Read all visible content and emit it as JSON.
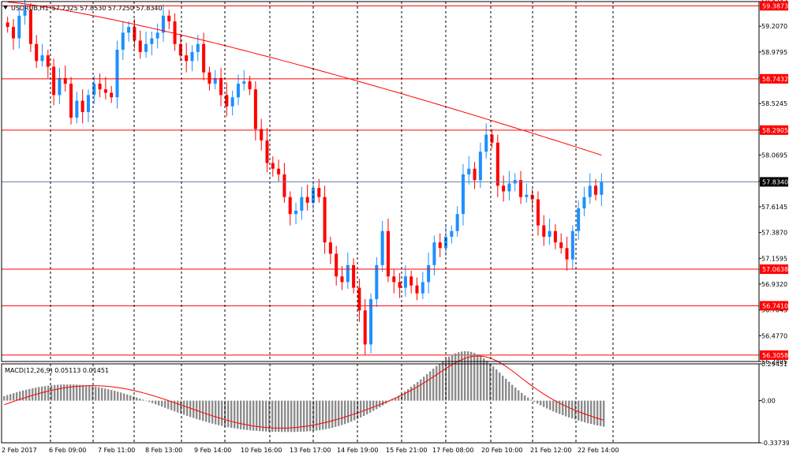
{
  "header": {
    "symbol_tf": "USDRUB,H1",
    "ohlc": "57.7325 57.8530 57.7250 57.8340",
    "macd_label": "MACD(12,26,9) 0.05113 0.01451"
  },
  "chart_data": {
    "type": "candlestick",
    "price_axis": {
      "min": 56.2495,
      "max": 59.4243,
      "ticks": [
        "59.4243",
        "59.2070",
        "58.9795",
        "58.7520",
        "58.5245",
        "58.2970",
        "58.0695",
        "57.8420",
        "57.6145",
        "57.3870",
        "57.1595",
        "56.9320",
        "56.7045",
        "56.4770",
        "56.2495"
      ]
    },
    "current_price": {
      "label": "57.8340",
      "value": 57.834,
      "color": "#5b7fa6"
    },
    "levels": [
      {
        "label": "59.3873",
        "value": 59.3873
      },
      {
        "label": "58.7432",
        "value": 58.7432
      },
      {
        "label": "58.2905",
        "value": 58.2905
      },
      {
        "label": "57.0638",
        "value": 57.0638
      },
      {
        "label": "56.7410",
        "value": 56.741
      },
      {
        "label": "56.3058",
        "value": 56.3058
      }
    ],
    "x_labels": [
      "2 Feb 2017",
      "6 Feb 09:00",
      "7 Feb 11:00",
      "8 Feb 13:00",
      "9 Feb 14:00",
      "10 Feb 16:00",
      "13 Feb 17:00",
      "14 Feb 19:00",
      "15 Feb 21:00",
      "17 Feb 08:00",
      "20 Feb 10:00",
      "21 Feb 12:00",
      "22 Feb 14:00"
    ],
    "closes": [
      59.2,
      59.1,
      59.3,
      59.35,
      59.05,
      58.9,
      58.95,
      58.85,
      58.6,
      58.75,
      58.7,
      58.4,
      58.55,
      58.45,
      58.6,
      58.7,
      58.65,
      58.62,
      58.58,
      59.0,
      59.15,
      59.2,
      59.08,
      58.98,
      59.05,
      59.1,
      59.15,
      59.3,
      59.25,
      59.05,
      58.95,
      58.9,
      58.98,
      59.05,
      58.8,
      58.7,
      58.75,
      58.6,
      58.5,
      58.58,
      58.7,
      58.72,
      58.65,
      58.3,
      58.2,
      58.0,
      57.95,
      57.9,
      57.7,
      57.55,
      57.58,
      57.7,
      57.65,
      57.78,
      57.7,
      57.3,
      57.2,
      57.0,
      56.95,
      57.1,
      56.9,
      56.7,
      56.4,
      56.8,
      57.1,
      57.4,
      57.0,
      56.95,
      56.9,
      57.0,
      56.92,
      56.85,
      56.95,
      57.1,
      57.3,
      57.25,
      57.35,
      57.4,
      57.55,
      57.9,
      57.95,
      57.85,
      58.1,
      58.25,
      58.18,
      57.8,
      57.75,
      57.82,
      57.85,
      57.7,
      57.72,
      57.68,
      57.45,
      57.35,
      57.4,
      57.3,
      57.25,
      57.15,
      57.4,
      57.6,
      57.7,
      57.8,
      57.72,
      57.83
    ],
    "ma_color": "#ff0000",
    "bull_color": "#1e90ff",
    "bear_color": "#ff0000",
    "macd": {
      "ticks": [
        "0.29451",
        "0.00",
        "-0.33739"
      ],
      "min": -0.33739,
      "max": 0.29451
    }
  }
}
